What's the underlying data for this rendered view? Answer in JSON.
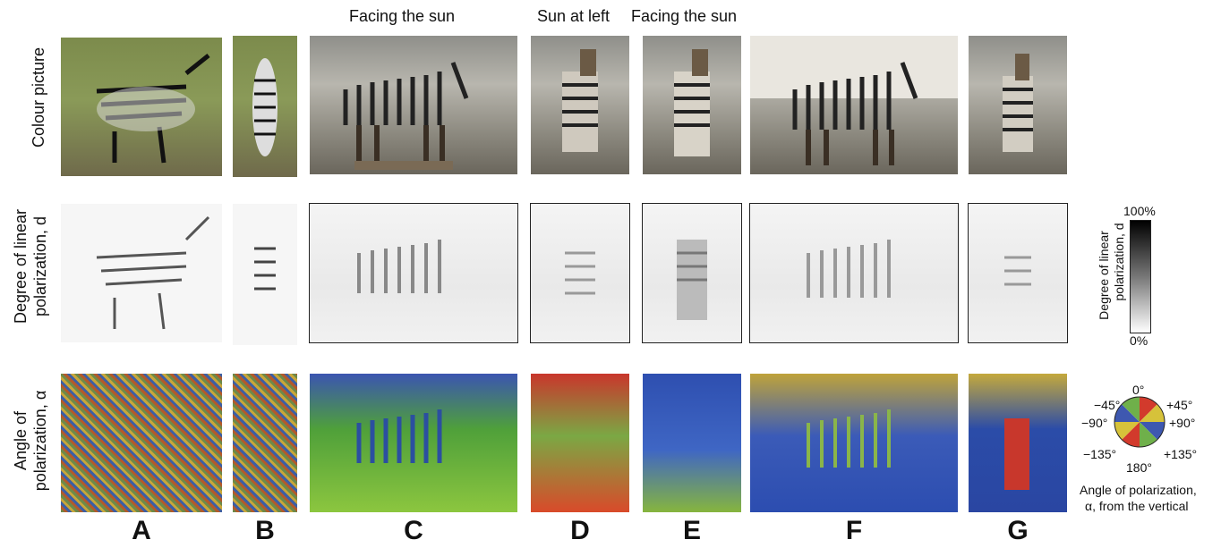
{
  "headers": {
    "facing_sun_c": "Facing the sun",
    "sun_at_left": "Sun at left",
    "facing_sun_e": "Facing the sun"
  },
  "row_labels": {
    "colour": "Colour picture",
    "degree_line1": "Degree of linear",
    "degree_line2": "polarization, d",
    "angle_line1": "Angle of",
    "angle_line2": "polarization, α"
  },
  "columns": [
    "A",
    "B",
    "C",
    "D",
    "E",
    "F",
    "G"
  ],
  "degree_scale": {
    "max": "100%",
    "min": "0%",
    "label_line1": "Degree of linear",
    "label_line2": "polarization, d"
  },
  "angle_wheel": {
    "top": "0°",
    "top_left": "−45°",
    "top_right": "+45°",
    "left": "−90°",
    "right": "+90°",
    "bottom_left": "−135°",
    "bottom_right": "+135°",
    "bottom": "180°",
    "caption_line1": "Angle of polarization,",
    "caption_line2": "α, from the vertical"
  }
}
